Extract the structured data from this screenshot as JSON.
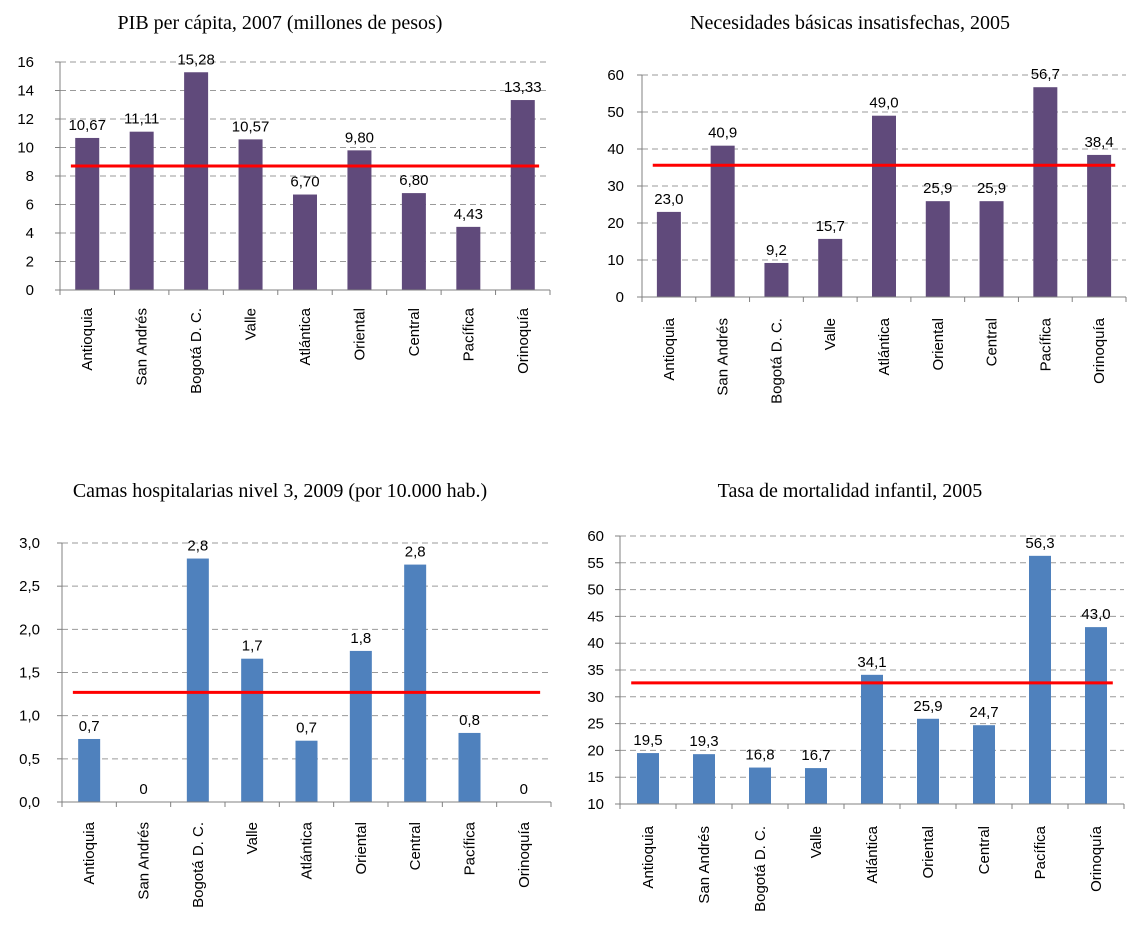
{
  "chart_data": [
    {
      "type": "bar",
      "title": "PIB per cápita, 2007 (millones de pesos)",
      "categories": [
        "Antioquia",
        "San Andrés",
        "Bogotá D. C.",
        "Valle",
        "Atlántica",
        "Oriental",
        "Central",
        "Pacífica",
        "Orinoquía"
      ],
      "values": [
        10.67,
        11.11,
        15.28,
        10.57,
        6.7,
        9.8,
        6.8,
        4.43,
        13.33
      ],
      "data_labels": [
        "10,67",
        "11,11",
        "15,28",
        "10,57",
        "6,70",
        "9,80",
        "6,80",
        "4,43",
        "13,33"
      ],
      "yticks": [
        "0",
        "2",
        "4",
        "6",
        "8",
        "10",
        "12",
        "14",
        "16"
      ],
      "ylim": [
        0,
        16
      ],
      "reference_line": 8.7,
      "bar_color": "#604A7B",
      "line_color": "#FF0000",
      "grid": true
    },
    {
      "type": "bar",
      "title": "Necesidades básicas insatisfechas, 2005",
      "categories": [
        "Antioquia",
        "San Andrés",
        "Bogotá D. C.",
        "Valle",
        "Atlántica",
        "Oriental",
        "Central",
        "Pacífica",
        "Orinoquía"
      ],
      "values": [
        23.0,
        40.9,
        9.2,
        15.7,
        49.0,
        25.9,
        25.9,
        56.7,
        38.4
      ],
      "data_labels": [
        "23,0",
        "40,9",
        "9,2",
        "15,7",
        "49,0",
        "25,9",
        "25,9",
        "56,7",
        "38,4"
      ],
      "yticks": [
        "0",
        "10",
        "20",
        "30",
        "40",
        "50",
        "60"
      ],
      "ylim": [
        0,
        60
      ],
      "reference_line": 35.6,
      "bar_color": "#604A7B",
      "line_color": "#FF0000",
      "grid": true
    },
    {
      "type": "bar",
      "title": "Camas hospitalarias nivel 3, 2009 (por 10.000 hab.)",
      "categories": [
        "Antioquia",
        "San Andrés",
        "Bogotá D. C.",
        "Valle",
        "Atlántica",
        "Oriental",
        "Central",
        "Pacífica",
        "Orinoquía"
      ],
      "values": [
        0.73,
        0,
        2.82,
        1.66,
        0.71,
        1.75,
        2.75,
        0.8,
        0
      ],
      "data_labels": [
        "0,7",
        "0",
        "2,8",
        "1,7",
        "0,7",
        "1,8",
        "2,8",
        "0,8",
        "0"
      ],
      "yticks": [
        "0,0",
        "0,5",
        "1,0",
        "1,5",
        "2,0",
        "2,5",
        "3,0"
      ],
      "ylim": [
        0,
        3
      ],
      "reference_line": 1.27,
      "bar_color": "#4F81BD",
      "line_color": "#FF0000",
      "grid": true
    },
    {
      "type": "bar",
      "title": "Tasa de mortalidad infantil, 2005",
      "categories": [
        "Antioquia",
        "San Andrés",
        "Bogotá D. C.",
        "Valle",
        "Atlántica",
        "Oriental",
        "Central",
        "Pacífica",
        "Orinoquía"
      ],
      "values": [
        19.5,
        19.3,
        16.8,
        16.7,
        34.1,
        25.9,
        24.7,
        56.3,
        43.0
      ],
      "data_labels": [
        "19,5",
        "19,3",
        "16,8",
        "16,7",
        "34,1",
        "25,9",
        "24,7",
        "56,3",
        "43,0"
      ],
      "yticks": [
        "10",
        "15",
        "20",
        "25",
        "30",
        "35",
        "40",
        "45",
        "50",
        "55",
        "60"
      ],
      "ylim": [
        10,
        60
      ],
      "reference_line": 32.6,
      "bar_color": "#4F81BD",
      "line_color": "#FF0000",
      "grid": true
    }
  ]
}
